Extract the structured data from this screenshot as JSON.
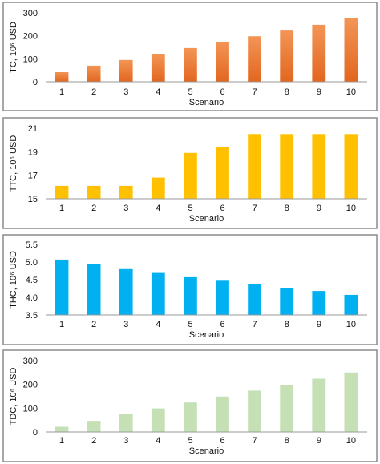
{
  "chart_data": [
    {
      "type": "bar",
      "categories": [
        "1",
        "2",
        "3",
        "4",
        "5",
        "6",
        "7",
        "8",
        "9",
        "10"
      ],
      "values": [
        42,
        70,
        95,
        120,
        147,
        174,
        198,
        223,
        248,
        277
      ],
      "xlabel": "Scenario",
      "ylabel": "TC, 10⁶ USD",
      "ylim": [
        0,
        300
      ],
      "yticks": [
        "0",
        "100",
        "200",
        "300"
      ],
      "bar_color": "#ed7d31",
      "bar_color_dark": "#d9601a"
    },
    {
      "type": "bar",
      "categories": [
        "1",
        "2",
        "3",
        "4",
        "5",
        "6",
        "7",
        "8",
        "9",
        "10"
      ],
      "values": [
        16.1,
        16.1,
        16.1,
        16.8,
        18.9,
        19.4,
        20.5,
        20.5,
        20.5,
        20.5
      ],
      "xlabel": "Scenario",
      "ylabel": "TTC, 10⁶ USD",
      "ylim": [
        15,
        21
      ],
      "yticks": [
        "15",
        "17",
        "19",
        "21"
      ],
      "bar_color": "#ffc000"
    },
    {
      "type": "bar",
      "categories": [
        "1",
        "2",
        "3",
        "4",
        "5",
        "6",
        "7",
        "8",
        "9",
        "10"
      ],
      "values": [
        5.07,
        4.94,
        4.8,
        4.69,
        4.57,
        4.47,
        4.38,
        4.27,
        4.18,
        4.07
      ],
      "xlabel": "Scenario",
      "ylabel": "THC, 10⁶ USD",
      "ylim": [
        3.5,
        5.5
      ],
      "yticks": [
        "3.5",
        "4.0",
        "4.5",
        "5.0",
        "5.5"
      ],
      "bar_color": "#00b0f0"
    },
    {
      "type": "bar",
      "categories": [
        "1",
        "2",
        "3",
        "4",
        "5",
        "6",
        "7",
        "8",
        "9",
        "10"
      ],
      "values": [
        22,
        47,
        74,
        99,
        124,
        149,
        174,
        199,
        224,
        250
      ],
      "xlabel": "Scenario",
      "ylabel": "TDC, 10⁶ USD",
      "ylim": [
        0,
        300
      ],
      "yticks": [
        "0",
        "100",
        "200",
        "300"
      ],
      "bar_color": "#c5e0b4"
    }
  ]
}
